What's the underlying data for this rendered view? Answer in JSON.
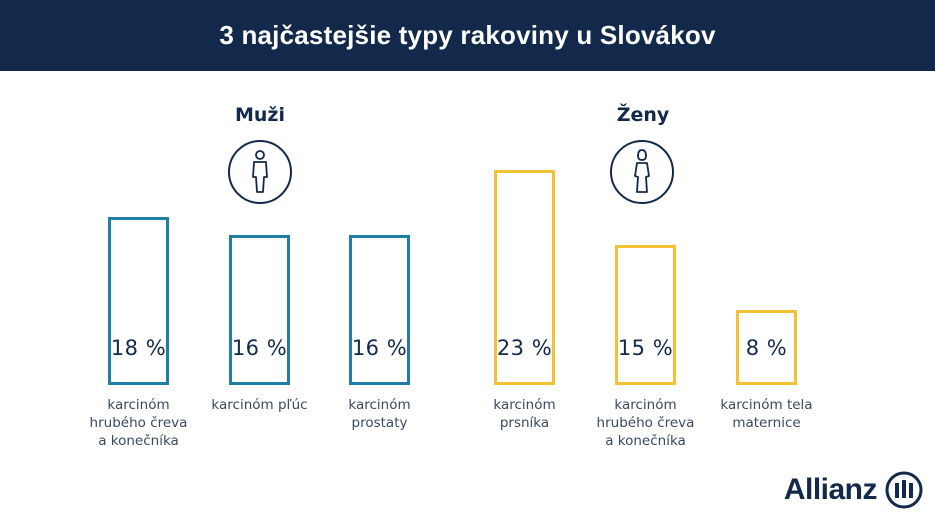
{
  "title": "3 najčastejšie typy rakoviny u Slovákov",
  "groups": [
    {
      "name": "Muži",
      "icon": "male-person-icon",
      "color": "#1f7ea3"
    },
    {
      "name": "Ženy",
      "icon": "female-person-icon",
      "color": "#f1c233"
    }
  ],
  "chart_data": {
    "type": "bar",
    "title": "3 najčastejšie typy rakoviny u Slovákov",
    "unit": "%",
    "series": [
      {
        "name": "Muži",
        "color": "#1f7ea3",
        "categories": [
          "karcinóm hrubého čreva a konečníka",
          "karcinóm pľúc",
          "karcinóm prostaty"
        ],
        "values": [
          18,
          16,
          16
        ],
        "value_labels": [
          "18 %",
          "16 %",
          "16 %"
        ]
      },
      {
        "name": "Ženy",
        "color": "#f1c233",
        "categories": [
          "karcinóm prsníka",
          "karcinóm hrubého čreva a konečníka",
          "karcinóm tela maternice"
        ],
        "values": [
          23,
          15,
          8
        ],
        "value_labels": [
          "23 %",
          "15 %",
          "8 %"
        ]
      }
    ]
  },
  "labels": {
    "m0": [
      "karcinóm",
      "hrubého čreva",
      "a konečníka"
    ],
    "m1": [
      "karcinóm pľúc"
    ],
    "m2": [
      "karcinóm",
      "prostaty"
    ],
    "f0": [
      "karcinóm",
      "prsníka"
    ],
    "f1": [
      "karcinóm",
      "hrubého čreva",
      "a konečníka"
    ],
    "f2": [
      "karcinóm tela",
      "maternice"
    ]
  },
  "logo": {
    "text": "Allianz",
    "icon": "allianz-logo-icon",
    "color": "#13294b"
  }
}
